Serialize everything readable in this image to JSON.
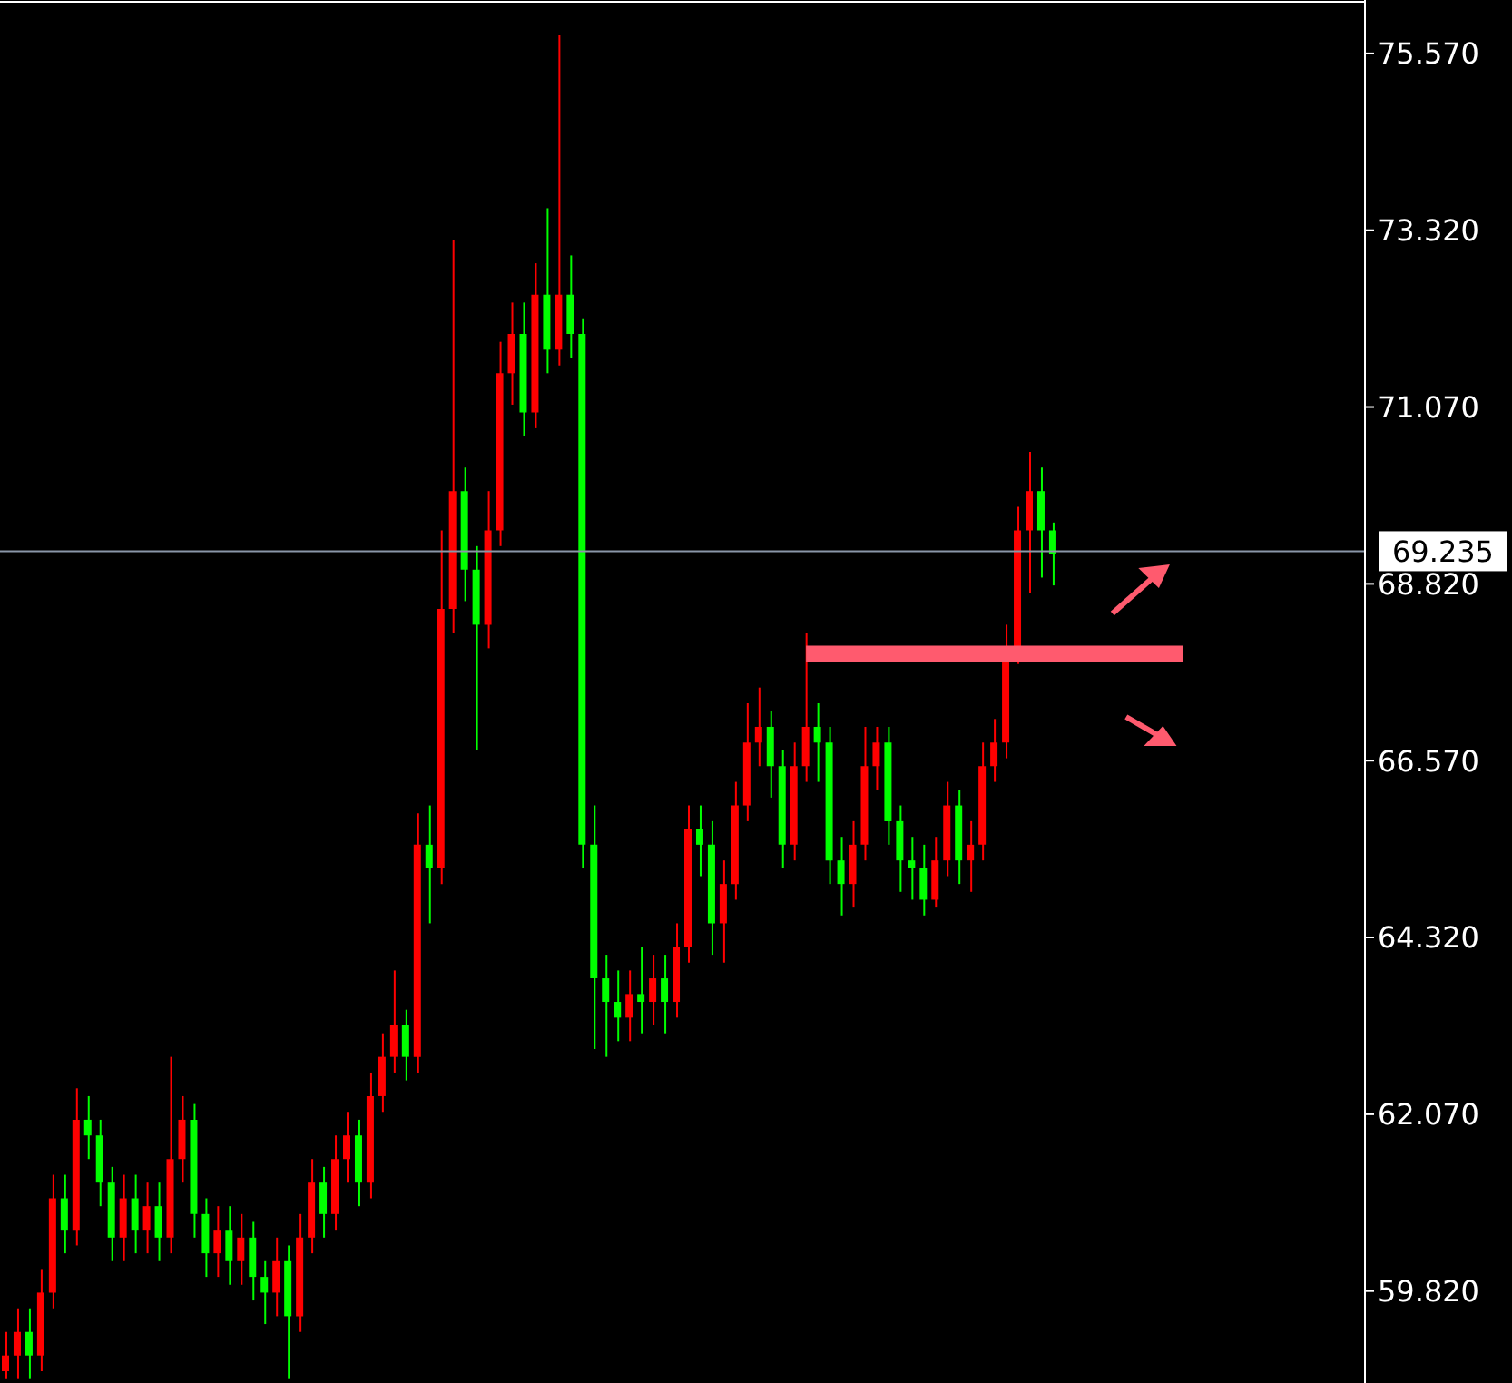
{
  "chart_data": {
    "type": "candlestick",
    "categories": [
      null,
      null,
      null,
      null,
      null,
      null,
      null,
      null,
      null,
      null,
      null,
      null,
      null,
      null,
      null,
      null,
      null,
      null,
      null,
      null,
      null,
      null,
      null,
      null,
      null,
      null,
      null,
      null,
      null,
      null,
      null,
      null,
      null,
      null,
      null,
      null,
      null,
      null,
      null,
      null,
      null,
      null,
      null,
      null,
      null,
      null,
      null,
      null,
      null,
      null,
      null,
      null,
      null,
      null,
      null,
      null,
      null,
      null,
      null,
      null,
      null,
      null,
      null,
      null,
      null,
      null,
      null,
      null,
      null,
      null,
      null,
      null,
      null,
      null,
      null,
      null,
      null,
      null,
      null,
      null,
      null,
      null,
      null,
      null,
      null,
      null,
      null,
      null,
      null,
      null,
      null,
      null,
      null,
      null,
      null,
      null,
      null,
      null,
      null,
      null,
      null,
      null,
      null,
      null,
      null,
      null,
      null,
      null,
      null,
      null,
      null,
      null,
      null,
      null,
      null,
      null
    ],
    "ohlc": [
      [
        58.8,
        59.3,
        58.7,
        59.0
      ],
      [
        59.0,
        59.6,
        58.7,
        59.3
      ],
      [
        59.3,
        59.6,
        58.7,
        59.0
      ],
      [
        59.0,
        60.1,
        58.8,
        59.8
      ],
      [
        59.8,
        61.3,
        59.6,
        61.0
      ],
      [
        61.0,
        61.3,
        60.3,
        60.6
      ],
      [
        60.6,
        62.4,
        60.4,
        62.0
      ],
      [
        62.0,
        62.3,
        61.5,
        61.8
      ],
      [
        61.8,
        62.0,
        60.9,
        61.2
      ],
      [
        61.2,
        61.4,
        60.2,
        60.5
      ],
      [
        60.5,
        61.3,
        60.2,
        61.0
      ],
      [
        61.0,
        61.3,
        60.3,
        60.6
      ],
      [
        60.6,
        61.2,
        60.3,
        60.9
      ],
      [
        60.9,
        61.2,
        60.2,
        60.5
      ],
      [
        60.5,
        62.8,
        60.3,
        61.5
      ],
      [
        61.5,
        62.3,
        61.2,
        62.0
      ],
      [
        62.0,
        62.2,
        60.5,
        60.8
      ],
      [
        60.8,
        61.0,
        60.0,
        60.3
      ],
      [
        60.3,
        60.9,
        60.0,
        60.6
      ],
      [
        60.6,
        60.9,
        59.9,
        60.2
      ],
      [
        60.2,
        60.8,
        59.9,
        60.5
      ],
      [
        60.5,
        60.7,
        59.7,
        60.0
      ],
      [
        60.0,
        60.2,
        59.4,
        59.8
      ],
      [
        59.8,
        60.5,
        59.5,
        60.2
      ],
      [
        60.2,
        60.4,
        58.7,
        59.5
      ],
      [
        59.5,
        60.8,
        59.3,
        60.5
      ],
      [
        60.5,
        61.5,
        60.3,
        61.2
      ],
      [
        61.2,
        61.4,
        60.5,
        60.8
      ],
      [
        60.8,
        61.8,
        60.6,
        61.5
      ],
      [
        61.5,
        62.1,
        61.2,
        61.8
      ],
      [
        61.8,
        62.0,
        60.9,
        61.2
      ],
      [
        61.2,
        62.6,
        61.0,
        62.3
      ],
      [
        62.3,
        63.1,
        62.1,
        62.8
      ],
      [
        62.8,
        63.9,
        62.6,
        63.2
      ],
      [
        63.2,
        63.4,
        62.5,
        62.8
      ],
      [
        62.8,
        65.9,
        62.6,
        65.5
      ],
      [
        65.5,
        66.0,
        64.5,
        65.2
      ],
      [
        65.2,
        69.5,
        65.0,
        68.5
      ],
      [
        68.5,
        73.2,
        68.2,
        70.0
      ],
      [
        70.0,
        70.3,
        68.6,
        69.0
      ],
      [
        69.0,
        69.3,
        66.7,
        68.3
      ],
      [
        68.3,
        70.0,
        68.0,
        69.5
      ],
      [
        69.5,
        71.9,
        69.3,
        71.5
      ],
      [
        71.5,
        72.4,
        71.1,
        72.0
      ],
      [
        72.0,
        72.4,
        70.7,
        71.0
      ],
      [
        71.0,
        72.9,
        70.8,
        72.5
      ],
      [
        72.5,
        73.6,
        71.5,
        71.8
      ],
      [
        71.8,
        75.8,
        71.6,
        72.5
      ],
      [
        72.5,
        73.0,
        71.7,
        72.0
      ],
      [
        72.0,
        72.2,
        65.2,
        65.5
      ],
      [
        65.5,
        66.0,
        62.9,
        63.8
      ],
      [
        63.8,
        64.1,
        62.8,
        63.5
      ],
      [
        63.5,
        63.9,
        63.0,
        63.3
      ],
      [
        63.3,
        63.9,
        63.0,
        63.6
      ],
      [
        63.6,
        64.2,
        63.1,
        63.5
      ],
      [
        63.5,
        64.1,
        63.2,
        63.8
      ],
      [
        63.8,
        64.1,
        63.1,
        63.5
      ],
      [
        63.5,
        64.5,
        63.3,
        64.2
      ],
      [
        64.2,
        66.0,
        64.0,
        65.7
      ],
      [
        65.7,
        66.0,
        65.1,
        65.5
      ],
      [
        65.5,
        65.8,
        64.1,
        64.5
      ],
      [
        64.5,
        65.3,
        64.0,
        65.0
      ],
      [
        65.0,
        66.3,
        64.8,
        66.0
      ],
      [
        66.0,
        67.3,
        65.8,
        66.8
      ],
      [
        66.8,
        67.5,
        66.5,
        67.0
      ],
      [
        67.0,
        67.2,
        66.1,
        66.5
      ],
      [
        66.5,
        66.7,
        65.2,
        65.5
      ],
      [
        65.5,
        66.8,
        65.3,
        66.5
      ],
      [
        66.5,
        68.2,
        66.3,
        67.0
      ],
      [
        67.0,
        67.3,
        66.3,
        66.8
      ],
      [
        66.8,
        67.0,
        65.0,
        65.3
      ],
      [
        65.3,
        65.6,
        64.6,
        65.0
      ],
      [
        65.0,
        65.8,
        64.7,
        65.5
      ],
      [
        65.5,
        67.0,
        65.3,
        66.5
      ],
      [
        66.5,
        67.0,
        66.2,
        66.8
      ],
      [
        66.8,
        67.0,
        65.5,
        65.8
      ],
      [
        65.8,
        66.0,
        64.9,
        65.3
      ],
      [
        65.3,
        65.6,
        64.8,
        65.2
      ],
      [
        65.2,
        65.5,
        64.6,
        64.8
      ],
      [
        64.8,
        65.6,
        64.7,
        65.3
      ],
      [
        65.3,
        66.3,
        65.1,
        66.0
      ],
      [
        66.0,
        66.2,
        65.0,
        65.3
      ],
      [
        65.3,
        65.8,
        64.9,
        65.5
      ],
      [
        65.5,
        66.8,
        65.3,
        66.5
      ],
      [
        66.5,
        67.1,
        66.3,
        66.8
      ],
      [
        66.8,
        68.3,
        66.6,
        68.0
      ],
      [
        68.0,
        69.8,
        67.8,
        69.5
      ],
      [
        69.5,
        70.5,
        68.7,
        70.0
      ],
      [
        70.0,
        70.3,
        68.9,
        69.5
      ],
      [
        69.5,
        69.6,
        68.8,
        69.2
      ],
      null,
      null,
      null,
      null,
      null,
      null,
      null,
      null,
      null,
      null,
      null,
      null,
      null,
      null,
      null,
      null,
      null,
      null,
      null,
      null,
      null,
      null,
      null,
      null,
      null,
      null
    ],
    "colors": [
      "#ff0000",
      "#ff0000",
      "#00ff00",
      "#ff0000",
      "#ff0000",
      "#00ff00",
      "#ff0000",
      "#00ff00",
      "#00ff00",
      "#00ff00",
      "#ff0000",
      "#00ff00",
      "#ff0000",
      "#00ff00",
      "#ff0000",
      "#ff0000",
      "#00ff00",
      "#00ff00",
      "#ff0000",
      "#00ff00",
      "#ff0000",
      "#00ff00",
      "#00ff00",
      "#ff0000",
      "#00ff00",
      "#ff0000",
      "#ff0000",
      "#00ff00",
      "#ff0000",
      "#ff0000",
      "#00ff00",
      "#ff0000",
      "#ff0000",
      "#ff0000",
      "#00ff00",
      "#ff0000",
      "#00ff00",
      "#ff0000",
      "#ff0000",
      "#00ff00",
      "#00ff00",
      "#ff0000",
      "#ff0000",
      "#ff0000",
      "#00ff00",
      "#ff0000",
      "#00ff00",
      "#ff0000",
      "#00ff00",
      "#00ff00",
      "#00ff00",
      "#00ff00",
      "#00ff00",
      "#ff0000",
      "#00ff00",
      "#ff0000",
      "#00ff00",
      "#ff0000",
      "#ff0000",
      "#00ff00",
      "#00ff00",
      "#ff0000",
      "#ff0000",
      "#ff0000",
      "#ff0000",
      "#00ff00",
      "#00ff00",
      "#ff0000",
      "#ff0000",
      "#00ff00",
      "#00ff00",
      "#00ff00",
      "#ff0000",
      "#ff0000",
      "#ff0000",
      "#00ff00",
      "#00ff00",
      "#00ff00",
      "#00ff00",
      "#ff0000",
      "#ff0000",
      "#00ff00",
      "#ff0000",
      "#ff0000",
      "#ff0000",
      "#ff0000",
      "#ff0000",
      "#ff0000",
      "#00ff00",
      "#00ff00",
      null,
      null,
      null,
      null,
      null,
      null,
      null,
      null,
      null,
      null,
      null,
      null,
      null,
      null,
      null,
      null,
      null,
      null,
      null,
      null,
      null,
      null,
      null,
      null,
      null,
      null
    ],
    "ylim": [
      58.65,
      76.25
    ],
    "yticks": [
      {
        "value": 59.82,
        "label": "59.820"
      },
      {
        "value": 62.07,
        "label": "62.070"
      },
      {
        "value": 64.32,
        "label": "64.320"
      },
      {
        "value": 66.57,
        "label": "66.570"
      },
      {
        "value": 68.82,
        "label": "68.820"
      },
      {
        "value": 71.07,
        "label": "71.070"
      },
      {
        "value": 73.32,
        "label": "73.320"
      },
      {
        "value": 75.57,
        "label": "75.570"
      }
    ],
    "ref_lines": [
      {
        "axis": "y",
        "value": 69.235,
        "label": "69.235",
        "color": "#8a96a8"
      },
      {
        "axis": "y",
        "value": 67.93,
        "label": null,
        "color": "#ff5a6e"
      }
    ],
    "tick_labels": "y"
  }
}
